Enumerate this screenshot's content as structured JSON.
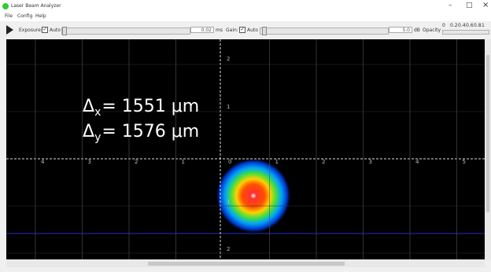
{
  "window": {
    "title": "Laser Beam Analyzer"
  },
  "menu": [
    "File",
    "Config",
    "Help"
  ],
  "toolbar": {
    "exposure_label": "Exposure:",
    "exposure_auto": "Auto",
    "exposure_value": "0.02",
    "exposure_unit": "ms",
    "gain_label": "Gain:",
    "gain_auto": "Auto",
    "gain_value": "5.0",
    "gain_unit": "dB",
    "opacity_label": "Opacity",
    "opacity_ticks": [
      "0",
      "0.2",
      "0.4",
      "0.6",
      "0.8",
      "1"
    ]
  },
  "image": {
    "x_labels": [
      "4",
      "3",
      "2",
      "1",
      "0",
      "1",
      "2",
      "3",
      "4",
      "5"
    ],
    "y_labels": [
      "2",
      "1",
      "1",
      "2"
    ],
    "measurements": [
      {
        "symbol": "Δ",
        "axis": "x",
        "text": "= 1551 μm"
      },
      {
        "symbol": "Δ",
        "axis": "y",
        "text": "= 1576 μm"
      }
    ]
  }
}
